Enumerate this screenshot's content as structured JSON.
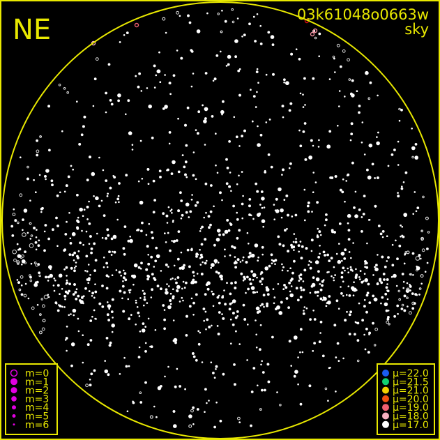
{
  "direction_label": "NE",
  "image_id": "03k61048o0663w",
  "image_type": "sky",
  "colors": {
    "frame": "#e8e800",
    "background": "#000000",
    "magnitude_marker": "#e000e0",
    "star": "#ffffff"
  },
  "magnitude_legend": {
    "items": [
      {
        "label": "m=0",
        "style": "ring"
      },
      {
        "label": "m=1",
        "style": "filled"
      },
      {
        "label": "m=2",
        "style": "filled"
      },
      {
        "label": "m=3",
        "style": "filled"
      },
      {
        "label": "m=4",
        "style": "filled"
      },
      {
        "label": "m=5",
        "style": "filled"
      },
      {
        "label": "m=6",
        "style": "filled"
      }
    ]
  },
  "brightness_legend": {
    "items": [
      {
        "label": "μ=22.0",
        "color": "#1a5cf0"
      },
      {
        "label": "μ=21.5",
        "color": "#10d070"
      },
      {
        "label": "μ=21.0",
        "color": "#f0d000"
      },
      {
        "label": "μ=20.0",
        "color": "#f05010"
      },
      {
        "label": "μ=19.0",
        "color": "#f06070"
      },
      {
        "label": "μ=18.0",
        "color": "#f8b0c0"
      },
      {
        "label": "μ=17.0",
        "color": "#ffffff"
      }
    ]
  }
}
